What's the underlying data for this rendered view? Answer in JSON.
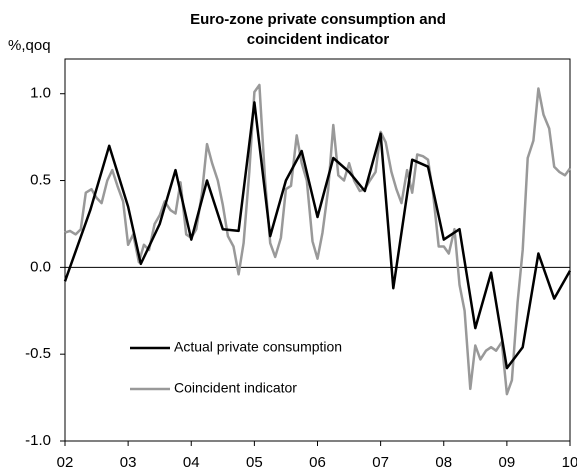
{
  "chart_data": {
    "type": "line",
    "title": [
      "Euro-zone private consumption and",
      "coincident indicator"
    ],
    "y_label": "%,qoq",
    "xlim": [
      2002,
      2010
    ],
    "xticks": [
      {
        "value": 2002,
        "label": "02"
      },
      {
        "value": 2003,
        "label": "03"
      },
      {
        "value": 2004,
        "label": "04"
      },
      {
        "value": 2005,
        "label": "05"
      },
      {
        "value": 2006,
        "label": "06"
      },
      {
        "value": 2007,
        "label": "07"
      },
      {
        "value": 2008,
        "label": "08"
      },
      {
        "value": 2009,
        "label": "09"
      },
      {
        "value": 2010,
        "label": "10"
      }
    ],
    "ylim": [
      -1.0,
      1.2
    ],
    "yticks": [
      {
        "value": -1,
        "label": "-1.0"
      },
      -0.5,
      {
        "value": 0,
        "label": "0.0"
      },
      0.5,
      {
        "value": 1,
        "label": "1.0"
      }
    ],
    "series": [
      {
        "name": "Actual private consumption",
        "color": "#000000",
        "width": 2.5,
        "x": [
          2002.0,
          2002.4,
          2002.7,
          2003.0,
          2003.2,
          2003.5,
          2003.75,
          2004.0,
          2004.25,
          2004.5,
          2004.75,
          2005.0,
          2005.25,
          2005.5,
          2005.75,
          2006.0,
          2006.25,
          2006.5,
          2006.75,
          2007.0,
          2007.2,
          2007.5,
          2007.75,
          2008.0,
          2008.25,
          2008.5,
          2008.75,
          2009.0,
          2009.25,
          2009.5,
          2009.75,
          2010.0
        ],
        "values": [
          -0.08,
          0.33,
          0.7,
          0.35,
          0.02,
          0.25,
          0.56,
          0.16,
          0.5,
          0.22,
          0.21,
          0.95,
          0.18,
          0.5,
          0.67,
          0.29,
          0.63,
          0.55,
          0.44,
          0.77,
          -0.12,
          0.62,
          0.58,
          0.16,
          0.22,
          -0.35,
          -0.03,
          -0.58,
          -0.46,
          0.08,
          -0.18,
          -0.02
        ]
      },
      {
        "name": "Coincident indicator",
        "color": "#999999",
        "width": 2.5,
        "x": [
          2002.0,
          2002.08,
          2002.17,
          2002.25,
          2002.33,
          2002.42,
          2002.5,
          2002.58,
          2002.67,
          2002.75,
          2002.83,
          2002.92,
          2003.0,
          2003.08,
          2003.17,
          2003.25,
          2003.33,
          2003.42,
          2003.5,
          2003.58,
          2003.67,
          2003.75,
          2003.83,
          2003.92,
          2004.0,
          2004.08,
          2004.17,
          2004.25,
          2004.33,
          2004.42,
          2004.5,
          2004.58,
          2004.67,
          2004.75,
          2004.83,
          2004.92,
          2005.0,
          2005.08,
          2005.17,
          2005.25,
          2005.33,
          2005.42,
          2005.5,
          2005.58,
          2005.67,
          2005.75,
          2005.83,
          2005.92,
          2006.0,
          2006.08,
          2006.17,
          2006.25,
          2006.33,
          2006.42,
          2006.5,
          2006.58,
          2006.67,
          2006.75,
          2006.83,
          2006.92,
          2007.0,
          2007.08,
          2007.17,
          2007.25,
          2007.33,
          2007.42,
          2007.5,
          2007.58,
          2007.67,
          2007.75,
          2007.83,
          2007.92,
          2008.0,
          2008.08,
          2008.17,
          2008.25,
          2008.33,
          2008.42,
          2008.5,
          2008.58,
          2008.67,
          2008.75,
          2008.83,
          2008.92,
          2009.0,
          2009.08,
          2009.17,
          2009.25,
          2009.33,
          2009.42,
          2009.5,
          2009.58,
          2009.67,
          2009.75,
          2009.83,
          2009.92,
          2010.0
        ],
        "values": [
          0.2,
          0.21,
          0.19,
          0.22,
          0.43,
          0.45,
          0.4,
          0.37,
          0.5,
          0.56,
          0.47,
          0.38,
          0.13,
          0.19,
          0.03,
          0.13,
          0.1,
          0.25,
          0.3,
          0.38,
          0.33,
          0.31,
          0.49,
          0.19,
          0.17,
          0.22,
          0.43,
          0.71,
          0.6,
          0.5,
          0.36,
          0.18,
          0.12,
          -0.04,
          0.14,
          0.55,
          1.01,
          1.05,
          0.5,
          0.14,
          0.06,
          0.17,
          0.45,
          0.47,
          0.76,
          0.6,
          0.5,
          0.15,
          0.05,
          0.2,
          0.45,
          0.82,
          0.53,
          0.5,
          0.6,
          0.5,
          0.44,
          0.45,
          0.5,
          0.55,
          0.78,
          0.72,
          0.55,
          0.45,
          0.37,
          0.56,
          0.43,
          0.65,
          0.64,
          0.62,
          0.43,
          0.12,
          0.12,
          0.08,
          0.22,
          -0.1,
          -0.25,
          -0.7,
          -0.45,
          -0.53,
          -0.48,
          -0.46,
          -0.48,
          -0.43,
          -0.73,
          -0.65,
          -0.2,
          0.1,
          0.63,
          0.73,
          1.03,
          0.88,
          0.8,
          0.58,
          0.55,
          0.53,
          0.57
        ]
      }
    ]
  }
}
